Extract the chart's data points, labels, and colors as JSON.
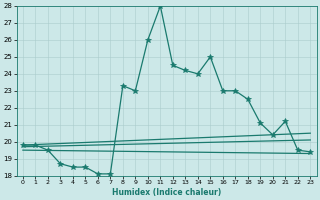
{
  "xlabel": "Humidex (Indice chaleur)",
  "bg_color": "#cce8e8",
  "grid_color": "#aacccc",
  "line_color": "#1a7a6e",
  "xlim": [
    -0.5,
    23.5
  ],
  "ylim": [
    18,
    28
  ],
  "xticks": [
    0,
    1,
    2,
    3,
    4,
    5,
    6,
    7,
    8,
    9,
    10,
    11,
    12,
    13,
    14,
    15,
    16,
    17,
    18,
    19,
    20,
    21,
    22,
    23
  ],
  "yticks": [
    18,
    19,
    20,
    21,
    22,
    23,
    24,
    25,
    26,
    27,
    28
  ],
  "lines": [
    {
      "x": [
        0,
        1,
        2,
        3,
        4,
        5,
        6,
        7,
        8,
        9,
        10,
        11,
        12,
        13,
        14,
        15,
        16,
        17,
        18,
        19,
        20,
        21,
        22,
        23
      ],
      "y": [
        19.8,
        19.8,
        19.5,
        18.7,
        18.5,
        18.5,
        18.1,
        18.1,
        23.3,
        23.0,
        26.0,
        28.0,
        24.5,
        24.2,
        24.0,
        25.0,
        23.0,
        23.0,
        22.5,
        21.1,
        20.4,
        21.2,
        19.5,
        19.4
      ],
      "marker": "*",
      "markersize": 4,
      "linewidth": 0.9
    },
    {
      "x": [
        0,
        23
      ],
      "y": [
        19.7,
        20.1
      ],
      "marker": null,
      "markersize": 0,
      "linewidth": 0.9
    },
    {
      "x": [
        0,
        23
      ],
      "y": [
        19.5,
        19.3
      ],
      "marker": null,
      "markersize": 0,
      "linewidth": 0.9
    },
    {
      "x": [
        0,
        23
      ],
      "y": [
        19.8,
        20.5
      ],
      "marker": null,
      "markersize": 0,
      "linewidth": 0.9
    }
  ]
}
